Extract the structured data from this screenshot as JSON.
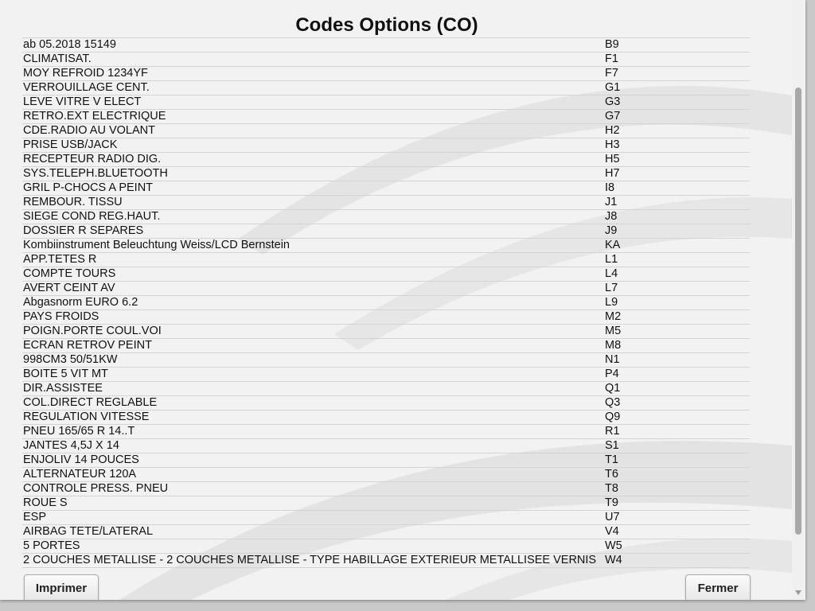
{
  "title": "Codes Options (CO)",
  "table": {
    "rows": [
      [
        "ab 05.2018 15149",
        "B9"
      ],
      [
        "CLIMATISAT.",
        "F1"
      ],
      [
        "MOY REFROID 1234YF",
        "F7"
      ],
      [
        "VERROUILLAGE CENT.",
        "G1"
      ],
      [
        "LEVE VITRE V ELECT",
        "G3"
      ],
      [
        "RETRO.EXT ELECTRIQUE",
        "G7"
      ],
      [
        "CDE.RADIO AU VOLANT",
        "H2"
      ],
      [
        "PRISE USB/JACK",
        "H3"
      ],
      [
        "RECEPTEUR RADIO DIG.",
        "H5"
      ],
      [
        "SYS.TELEPH.BLUETOOTH",
        "H7"
      ],
      [
        "GRIL P-CHOCS A PEINT",
        "I8"
      ],
      [
        "REMBOUR. TISSU",
        "J1"
      ],
      [
        "SIEGE COND REG.HAUT.",
        "J8"
      ],
      [
        "DOSSIER R SEPARES",
        "J9"
      ],
      [
        "Kombiinstrument Beleuchtung Weiss/LCD Bernstein",
        "KA"
      ],
      [
        "APP.TETES R",
        "L1"
      ],
      [
        "COMPTE TOURS",
        "L4"
      ],
      [
        "AVERT CEINT AV",
        "L7"
      ],
      [
        "Abgasnorm EURO 6.2",
        "L9"
      ],
      [
        "PAYS FROIDS",
        "M2"
      ],
      [
        "POIGN.PORTE COUL.VOI",
        "M5"
      ],
      [
        "ECRAN RETROV PEINT",
        "M8"
      ],
      [
        "998CM3 50/51KW",
        "N1"
      ],
      [
        "BOITE 5 VIT MT",
        "P4"
      ],
      [
        "DIR.ASSISTEE",
        "Q1"
      ],
      [
        "COL.DIRECT REGLABLE",
        "Q3"
      ],
      [
        "REGULATION VITESSE",
        "Q9"
      ],
      [
        "PNEU 165/65 R 14..T",
        "R1"
      ],
      [
        "JANTES 4,5J X 14",
        "S1"
      ],
      [
        "ENJOLIV 14 POUCES",
        "T1"
      ],
      [
        "ALTERNATEUR 120A",
        "T6"
      ],
      [
        "CONTROLE PRESS. PNEU",
        "T8"
      ],
      [
        "ROUE S",
        "T9"
      ],
      [
        "ESP",
        "U7"
      ],
      [
        "AIRBAG TETE/LATERAL",
        "V4"
      ],
      [
        "5 PORTES",
        "W5"
      ],
      [
        "2 COUCHES METALLISE - 2 COUCHES METALLISE - TYPE HABILLAGE EXTERIEUR METALLISEE VERNIS",
        "W4"
      ]
    ]
  },
  "buttons": {
    "print": "Imprimer",
    "close": "Fermer"
  }
}
